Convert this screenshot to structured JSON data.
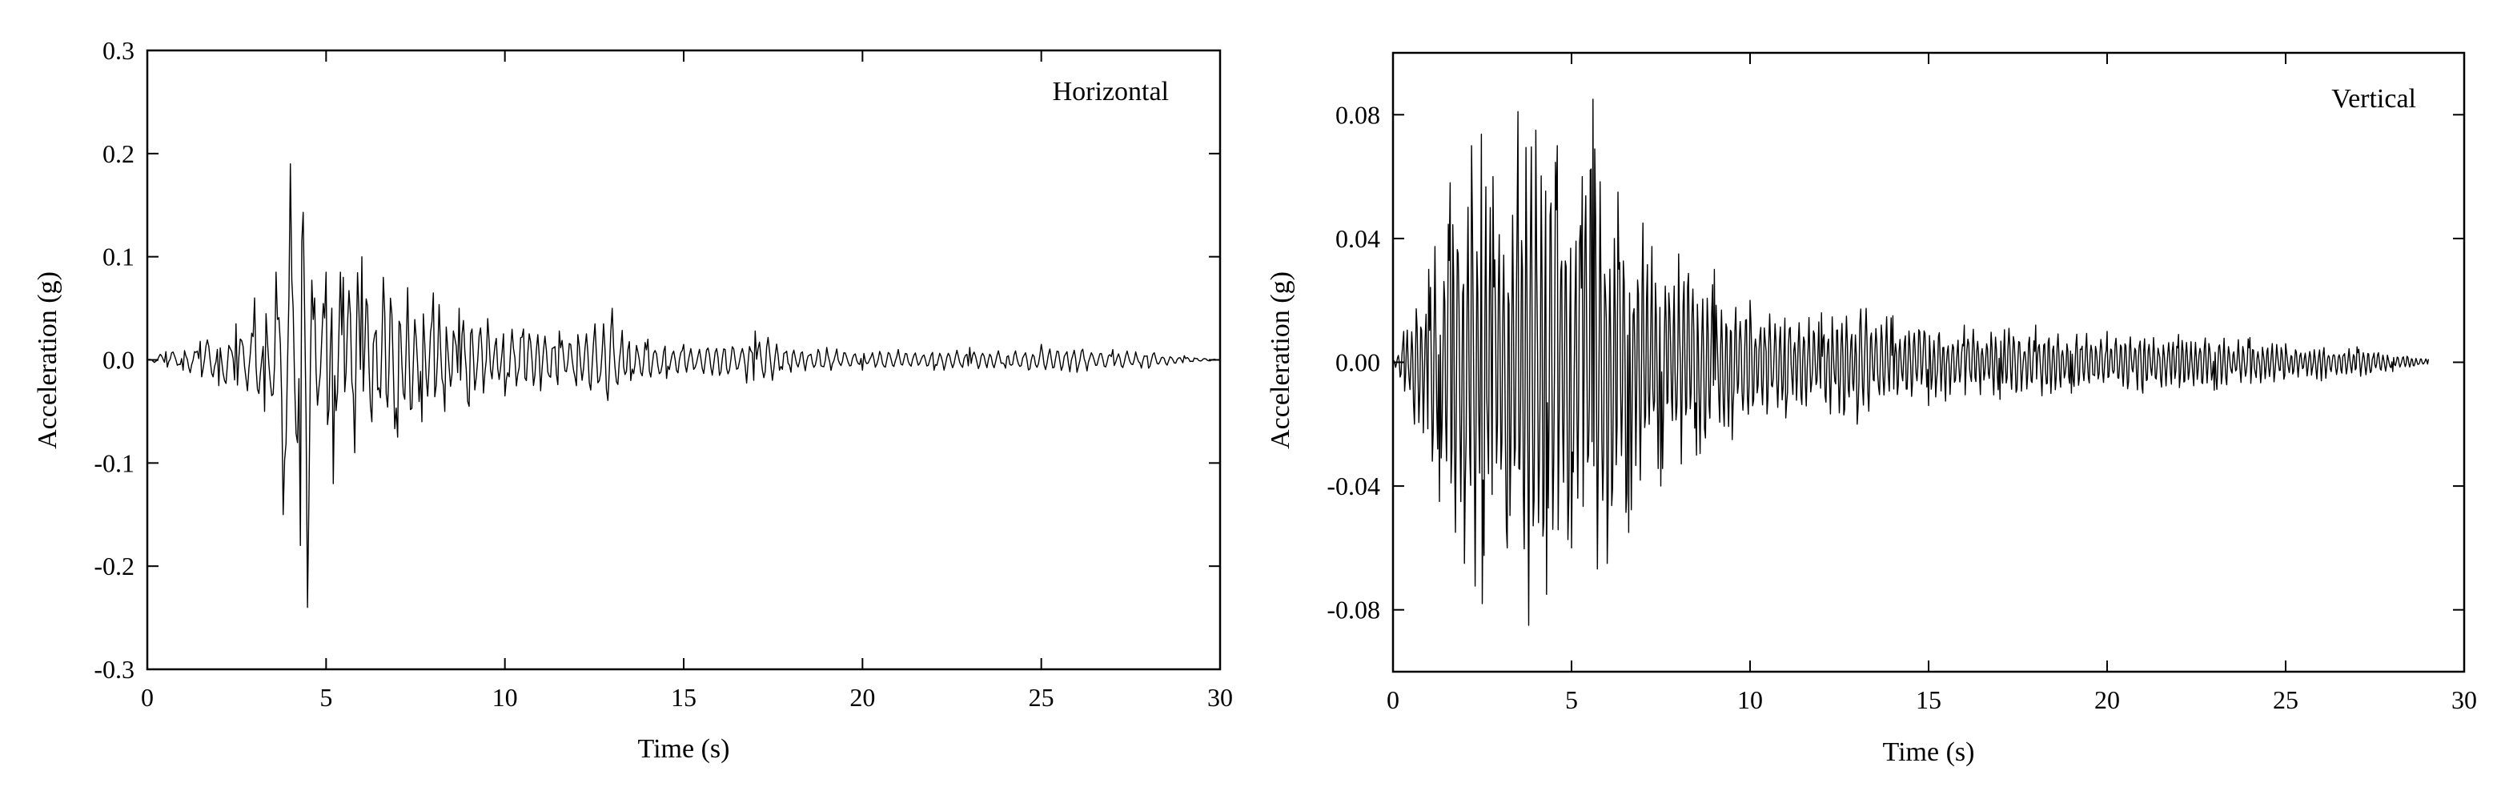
{
  "chart_data": [
    {
      "type": "line",
      "panel_label": "Horizontal",
      "xlabel": "Time (s)",
      "ylabel": "Acceleration (g)",
      "xlim": [
        0,
        30
      ],
      "ylim": [
        -0.3,
        0.3
      ],
      "xticks": [
        0,
        5,
        10,
        15,
        20,
        25,
        30
      ],
      "xtick_labels": [
        "0",
        "5",
        "10",
        "15",
        "20",
        "25",
        "30"
      ],
      "yticks": [
        -0.3,
        -0.2,
        -0.1,
        0.0,
        0.1,
        0.2,
        0.3
      ],
      "ytick_labels": [
        "-0.3",
        "-0.2",
        "-0.1",
        "0.0",
        "0.1",
        "0.2",
        "0.3"
      ],
      "grid": false,
      "legend": "none",
      "line_color": "#000000",
      "series": [
        {
          "x": [
            0,
            0.5,
            1.0,
            1.5,
            2.0,
            2.5,
            2.8,
            3.0,
            3.3,
            3.6,
            3.8,
            4.0,
            4.1,
            4.3,
            4.5,
            4.7,
            5.0,
            5.2,
            5.5,
            5.8,
            6.0,
            6.3,
            6.6,
            7.0,
            7.3,
            7.7,
            8.0,
            8.3,
            8.7,
            9.0,
            9.5,
            10.0,
            10.5,
            11.0,
            11.5,
            12.0,
            12.5,
            13.0,
            13.5,
            14.0,
            14.5,
            15.0,
            16.0,
            17.0,
            18.0,
            19.0,
            20.0,
            21.0,
            22.0,
            23.0,
            24.0,
            25.0,
            26.0,
            27.0,
            28.0,
            29.0,
            30.0
          ],
          "y": [
            0.0,
            0.008,
            -0.01,
            0.018,
            -0.025,
            0.035,
            -0.03,
            0.06,
            -0.05,
            0.085,
            -0.15,
            0.19,
            0.05,
            -0.18,
            -0.24,
            0.06,
            0.085,
            -0.12,
            0.08,
            -0.09,
            0.1,
            -0.06,
            0.08,
            -0.075,
            0.07,
            -0.06,
            0.065,
            -0.05,
            0.05,
            -0.045,
            0.04,
            -0.035,
            0.03,
            -0.03,
            0.028,
            -0.025,
            0.035,
            0.05,
            -0.02,
            0.02,
            -0.018,
            0.015,
            -0.015,
            0.028,
            -0.012,
            0.012,
            -0.01,
            0.01,
            -0.01,
            0.012,
            -0.008,
            0.015,
            -0.012,
            0.01,
            -0.008,
            0.004,
            0.0
          ]
        }
      ]
    },
    {
      "type": "line",
      "panel_label": "Vertical",
      "xlabel": "Time (s)",
      "ylabel": "Acceleration (g)",
      "xlim": [
        0,
        30
      ],
      "ylim": [
        -0.1,
        0.1
      ],
      "xticks": [
        0,
        5,
        10,
        15,
        20,
        25,
        30
      ],
      "xtick_labels": [
        "0",
        "5",
        "10",
        "15",
        "20",
        "25",
        "30"
      ],
      "yticks": [
        -0.08,
        -0.04,
        0.0,
        0.04,
        0.08
      ],
      "ytick_labels": [
        "-0.08",
        "-0.04",
        "0.00",
        "0.04",
        "0.08"
      ],
      "grid": false,
      "legend": "none",
      "line_color": "#000000",
      "series": [
        {
          "x": [
            0,
            0.3,
            0.6,
            1.0,
            1.3,
            1.6,
            2.0,
            2.2,
            2.5,
            2.8,
            3.2,
            3.5,
            3.8,
            4.0,
            4.3,
            4.6,
            5.0,
            5.3,
            5.6,
            6.0,
            6.3,
            6.6,
            7.0,
            7.5,
            8.0,
            8.5,
            9.0,
            9.5,
            10.0,
            11.0,
            12.0,
            13.0,
            14.0,
            15.0,
            16.0,
            17.0,
            18.0,
            19.0,
            20.0,
            21.0,
            22.0,
            23.0,
            24.0,
            25.0,
            26.0,
            27.0,
            28.0,
            29.0
          ],
          "y": [
            0.0,
            0.01,
            -0.02,
            0.03,
            -0.045,
            0.058,
            -0.065,
            0.07,
            -0.078,
            0.06,
            -0.06,
            0.081,
            -0.085,
            0.075,
            -0.075,
            0.07,
            -0.06,
            0.06,
            0.085,
            -0.065,
            0.055,
            -0.055,
            0.045,
            -0.04,
            0.035,
            -0.03,
            0.03,
            -0.025,
            0.02,
            -0.018,
            0.016,
            -0.02,
            0.015,
            -0.014,
            0.012,
            -0.012,
            0.012,
            -0.01,
            0.01,
            -0.01,
            0.009,
            -0.009,
            0.008,
            0.006,
            -0.006,
            0.005,
            -0.003,
            0.001
          ]
        }
      ]
    }
  ]
}
